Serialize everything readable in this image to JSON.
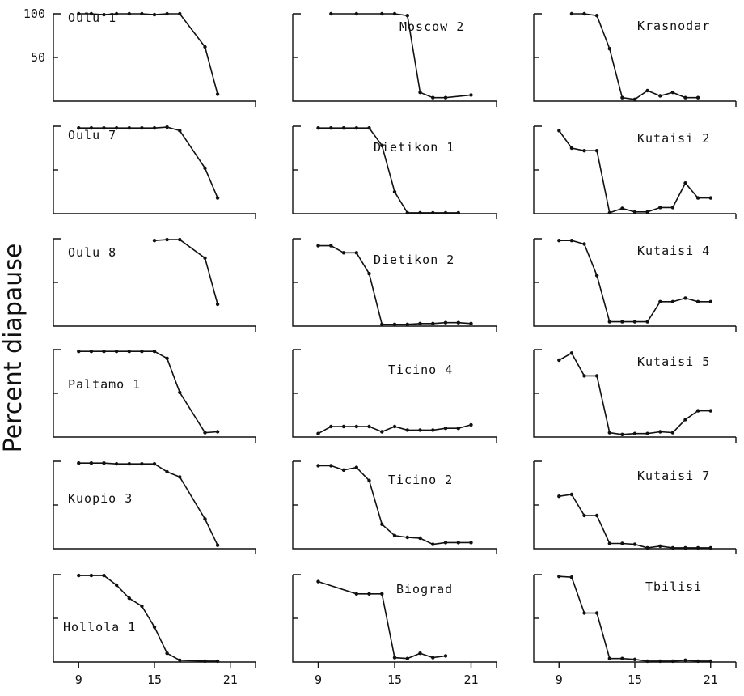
{
  "ylabel": "Percent diapause",
  "chart_data": {
    "type": "line",
    "xlim": [
      7,
      23
    ],
    "ylim": [
      0,
      100
    ],
    "x_ticks": [
      "9",
      "15",
      "21"
    ],
    "y_ticks": [
      "100",
      "50"
    ],
    "panels": [
      {
        "name": "Oulu 1",
        "x": [
          9,
          10,
          11,
          12,
          13,
          14,
          15,
          16,
          17,
          19,
          20
        ],
        "y": [
          100,
          100,
          99,
          100,
          100,
          100,
          99,
          100,
          100,
          62,
          8
        ]
      },
      {
        "name": "Oulu 7",
        "x": [
          9,
          10,
          11,
          12,
          13,
          14,
          15,
          16,
          17,
          19,
          20
        ],
        "y": [
          98,
          98,
          98,
          98,
          98,
          98,
          98,
          99,
          95,
          52,
          18
        ]
      },
      {
        "name": "Oulu 8",
        "x": [
          15,
          16,
          17,
          19,
          20
        ],
        "y": [
          98,
          99,
          99,
          78,
          25
        ]
      },
      {
        "name": "Paltamo 1",
        "x": [
          9,
          10,
          11,
          12,
          13,
          14,
          15,
          16,
          17,
          19,
          20
        ],
        "y": [
          98,
          98,
          98,
          98,
          98,
          98,
          98,
          90,
          51,
          5,
          6
        ]
      },
      {
        "name": "Kuopio 3",
        "x": [
          9,
          10,
          11,
          12,
          13,
          14,
          15,
          16,
          17,
          19,
          20
        ],
        "y": [
          98,
          98,
          98,
          97,
          97,
          97,
          97,
          88,
          82,
          34,
          4
        ]
      },
      {
        "name": "Hollola 1",
        "x": [
          9,
          10,
          11,
          12,
          13,
          14,
          15,
          16,
          17,
          19,
          20
        ],
        "y": [
          99,
          99,
          99,
          88,
          73,
          64,
          40,
          10,
          2,
          1,
          1
        ]
      },
      {
        "name": "Moscow 2",
        "x": [
          10,
          12,
          14,
          15,
          16,
          17,
          18,
          19,
          21
        ],
        "y": [
          100,
          100,
          100,
          100,
          98,
          10,
          4,
          4,
          7
        ]
      },
      {
        "name": "Dietikon 1",
        "x": [
          9,
          10,
          11,
          12,
          13,
          14,
          15,
          16,
          17,
          18,
          19,
          20
        ],
        "y": [
          98,
          98,
          98,
          98,
          98,
          78,
          25,
          1,
          1,
          1,
          1,
          1
        ]
      },
      {
        "name": "Dietikon 2",
        "x": [
          9,
          10,
          11,
          12,
          13,
          14,
          15,
          16,
          17,
          18,
          19,
          20,
          21
        ],
        "y": [
          92,
          92,
          84,
          84,
          60,
          2,
          2,
          2,
          3,
          3,
          4,
          4,
          3
        ]
      },
      {
        "name": "Ticino 4",
        "x": [
          9,
          10,
          11,
          12,
          13,
          14,
          15,
          16,
          17,
          18,
          19,
          20,
          21
        ],
        "y": [
          4,
          12,
          12,
          12,
          12,
          6,
          12,
          8,
          8,
          8,
          10,
          10,
          14
        ]
      },
      {
        "name": "Ticino 2",
        "x": [
          9,
          10,
          11,
          12,
          13,
          14,
          15,
          16,
          17,
          18,
          19,
          20,
          21
        ],
        "y": [
          95,
          95,
          90,
          93,
          78,
          28,
          15,
          13,
          12,
          5,
          7,
          7,
          7
        ]
      },
      {
        "name": "Biograd",
        "x": [
          9,
          12,
          13,
          14,
          15,
          16,
          17,
          18,
          19
        ],
        "y": [
          92,
          78,
          78,
          78,
          5,
          4,
          10,
          5,
          7
        ]
      },
      {
        "name": "Krasnodar",
        "x": [
          10,
          11,
          12,
          13,
          14,
          15,
          16,
          17,
          18,
          19,
          20
        ],
        "y": [
          100,
          100,
          98,
          60,
          4,
          2,
          12,
          6,
          10,
          4,
          4
        ]
      },
      {
        "name": "Kutaisi 2",
        "x": [
          9,
          10,
          11,
          12,
          13,
          14,
          15,
          16,
          17,
          18,
          19,
          20,
          21
        ],
        "y": [
          95,
          75,
          72,
          72,
          1,
          6,
          2,
          2,
          7,
          7,
          35,
          18,
          18
        ]
      },
      {
        "name": "Kutaisi 4",
        "x": [
          9,
          10,
          11,
          12,
          13,
          14,
          15,
          16,
          17,
          18,
          19,
          20,
          21
        ],
        "y": [
          98,
          98,
          94,
          58,
          5,
          5,
          5,
          5,
          28,
          28,
          32,
          28,
          28
        ]
      },
      {
        "name": "Kutaisi 5",
        "x": [
          9,
          10,
          11,
          12,
          13,
          14,
          15,
          16,
          17,
          18,
          19,
          20,
          21
        ],
        "y": [
          88,
          96,
          70,
          70,
          5,
          3,
          4,
          4,
          6,
          5,
          20,
          30,
          30
        ]
      },
      {
        "name": "Kutaisi 7",
        "x": [
          9,
          10,
          11,
          12,
          13,
          14,
          15,
          16,
          17,
          18,
          19,
          20,
          21
        ],
        "y": [
          60,
          62,
          38,
          38,
          6,
          6,
          5,
          1,
          3,
          1,
          1,
          1,
          1
        ]
      },
      {
        "name": "Tbilisi",
        "x": [
          9,
          10,
          11,
          12,
          13,
          14,
          15,
          16,
          17,
          18,
          19,
          20,
          21
        ],
        "y": [
          98,
          97,
          56,
          56,
          4,
          4,
          3,
          1,
          1,
          1,
          2,
          1,
          1
        ]
      }
    ]
  }
}
